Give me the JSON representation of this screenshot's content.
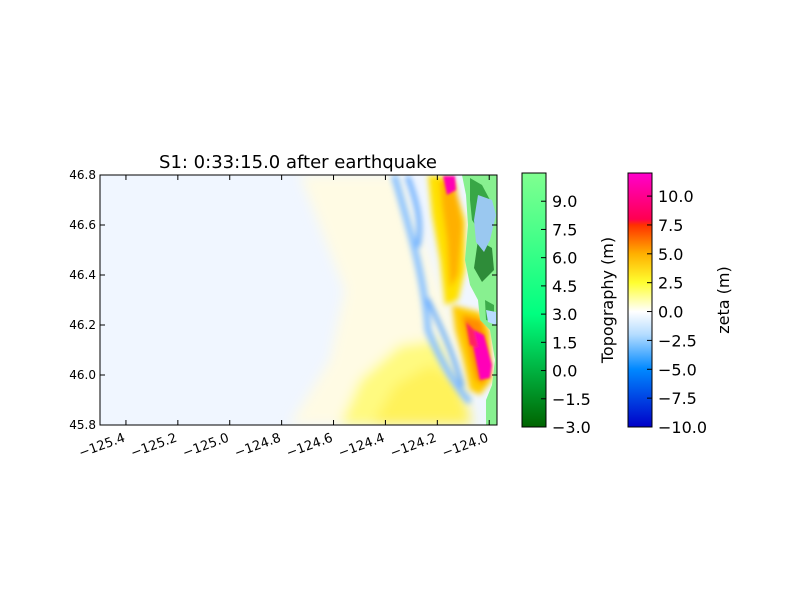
{
  "chart_data": {
    "type": "heatmap",
    "title": "S1: 0:33:15.0 after earthquake",
    "xlabel": "",
    "ylabel": "",
    "xlim": [
      -125.5,
      -123.97
    ],
    "ylim": [
      45.8,
      46.8
    ],
    "x_ticks": [
      -125.4,
      -125.2,
      -125.0,
      -124.8,
      -124.6,
      -124.4,
      -124.2,
      -124.0
    ],
    "x_tick_labels": [
      "−125.4",
      "−125.2",
      "−125.0",
      "−124.8",
      "−124.6",
      "−124.4",
      "−124.2",
      "−124.0"
    ],
    "y_ticks": [
      45.8,
      46.0,
      46.2,
      46.4,
      46.6,
      46.8
    ],
    "y_tick_labels": [
      "45.8",
      "46.0",
      "46.2",
      "46.4",
      "46.6",
      "46.8"
    ],
    "grid": false,
    "colorbars": [
      {
        "label": "Topography (m)",
        "range": [
          -3.0,
          10.5
        ],
        "ticks": [
          -3.0,
          -1.5,
          0.0,
          1.5,
          3.0,
          4.5,
          6.0,
          7.5,
          9.0
        ],
        "tick_labels": [
          "−3.0",
          "−1.5",
          "0.0",
          "1.5",
          "3.0",
          "4.5",
          "6.0",
          "7.5",
          "9.0"
        ],
        "colors": [
          {
            "value": -3.0,
            "color": "#006400"
          },
          {
            "value": 3.0,
            "color": "#00ff80"
          },
          {
            "value": 10.5,
            "color": "#80ff90"
          }
        ]
      },
      {
        "label": "zeta (m)",
        "range": [
          -10.0,
          12.0
        ],
        "ticks": [
          -10.0,
          -7.5,
          -5.0,
          -2.5,
          0.0,
          2.5,
          5.0,
          7.5,
          10.0
        ],
        "tick_labels": [
          "−10.0",
          "−7.5",
          "−5.0",
          "−2.5",
          "0.0",
          "2.5",
          "5.0",
          "7.5",
          "10.0"
        ],
        "colors": [
          {
            "value": -10.0,
            "color": "#0000c8"
          },
          {
            "value": -5.0,
            "color": "#0088ff"
          },
          {
            "value": -2.0,
            "color": "#b4dcff"
          },
          {
            "value": 0.0,
            "color": "#ffffff"
          },
          {
            "value": 2.5,
            "color": "#ffff30"
          },
          {
            "value": 5.0,
            "color": "#ffb000"
          },
          {
            "value": 7.5,
            "color": "#ff3000"
          },
          {
            "value": 8.0,
            "color": "#ff0050"
          },
          {
            "value": 12.0,
            "color": "#ff00cc"
          }
        ]
      }
    ]
  }
}
